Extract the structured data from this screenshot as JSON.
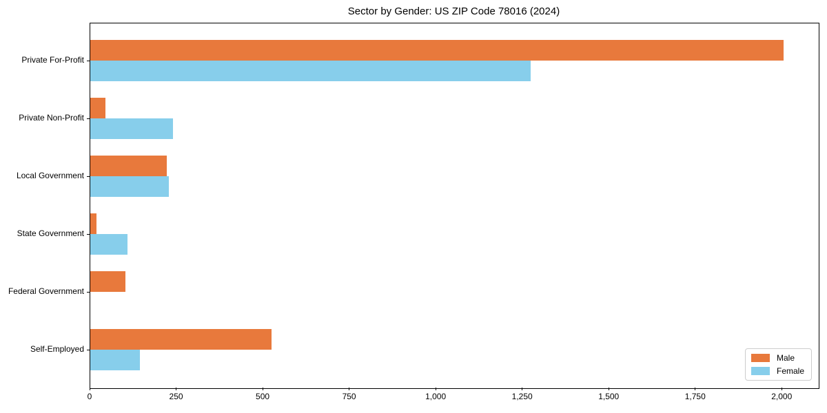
{
  "title": "Sector by Gender: US ZIP Code 78016 (2024)",
  "colors": {
    "male": "#E8793C",
    "female": "#87CEEB",
    "axis": "#000000",
    "legend_border": "#CCCCCC",
    "background": "#FFFFFF"
  },
  "legend": {
    "items": [
      {
        "label": "Male",
        "color": "#E8793C"
      },
      {
        "label": "Female",
        "color": "#87CEEB"
      }
    ],
    "position": "lower right"
  },
  "chart_data": {
    "type": "bar",
    "orientation": "horizontal",
    "title": "Sector by Gender: US ZIP Code 78016 (2024)",
    "categories": [
      "Private For-Profit",
      "Private Non-Profit",
      "Local Government",
      "State Government",
      "Federal Government",
      "Self-Employed"
    ],
    "series": [
      {
        "name": "Male",
        "color": "#E8793C",
        "values": [
          2004,
          43,
          222,
          17,
          101,
          523
        ]
      },
      {
        "name": "Female",
        "color": "#87CEEB",
        "values": [
          1273,
          238,
          227,
          108,
          0,
          143
        ]
      }
    ],
    "xlabel": "",
    "ylabel": "",
    "xlim": [
      0,
      2105
    ],
    "xticks": [
      0,
      250,
      500,
      750,
      1000,
      1250,
      1500,
      1750,
      2000
    ],
    "xtick_labels": [
      "0",
      "250",
      "500",
      "750",
      "1,000",
      "1,250",
      "1,500",
      "1,750",
      "2,000"
    ],
    "grid": false,
    "legend_position": "lower right"
  }
}
